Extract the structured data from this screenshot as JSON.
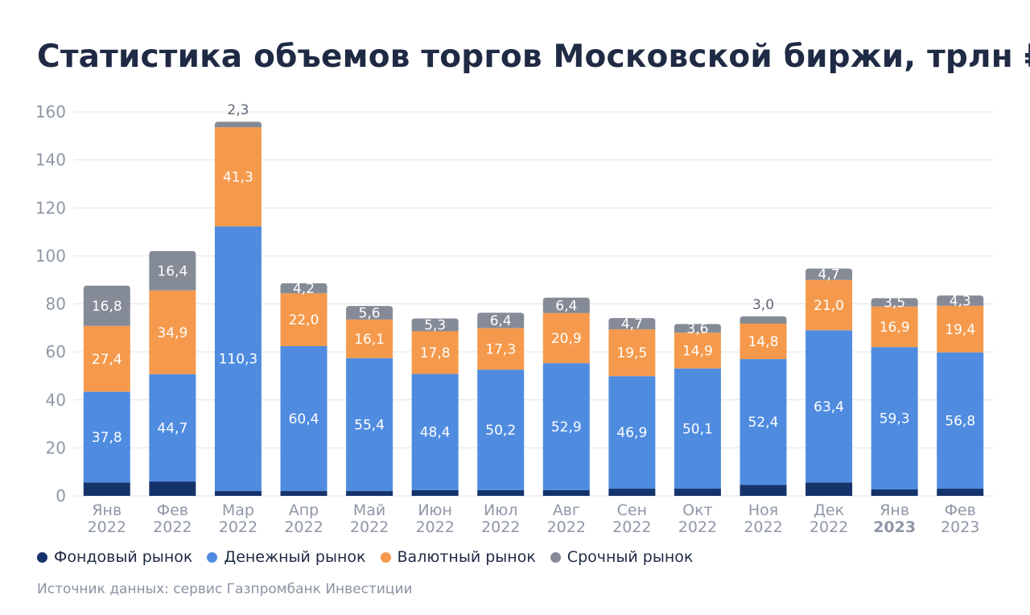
{
  "chart_data": {
    "type": "bar",
    "stacked": true,
    "title": "Статистика объемов торгов Московской биржи, трлн ₽",
    "categories": [
      {
        "month": "Янв",
        "year": "2022",
        "year_bold": false
      },
      {
        "month": "Фев",
        "year": "2022",
        "year_bold": false
      },
      {
        "month": "Мар",
        "year": "2022",
        "year_bold": false
      },
      {
        "month": "Апр",
        "year": "2022",
        "year_bold": false
      },
      {
        "month": "Май",
        "year": "2022",
        "year_bold": false
      },
      {
        "month": "Июн",
        "year": "2022",
        "year_bold": false
      },
      {
        "month": "Июл",
        "year": "2022",
        "year_bold": false
      },
      {
        "month": "Авг",
        "year": "2022",
        "year_bold": false
      },
      {
        "month": "Сен",
        "year": "2022",
        "year_bold": false
      },
      {
        "month": "Окт",
        "year": "2022",
        "year_bold": false
      },
      {
        "month": "Ноя",
        "year": "2022",
        "year_bold": false
      },
      {
        "month": "Дек",
        "year": "2022",
        "year_bold": false
      },
      {
        "month": "Янв",
        "year": "2023",
        "year_bold": true
      },
      {
        "month": "Фев",
        "year": "2023",
        "year_bold": false
      }
    ],
    "series": [
      {
        "name": "Фондовый рынок",
        "color": "#15336b",
        "values": [
          5.6,
          6.0,
          2.0,
          2.0,
          2.0,
          2.4,
          2.4,
          2.4,
          3.0,
          3.0,
          4.6,
          5.6,
          2.7,
          3.0
        ],
        "labels": [
          "",
          "",
          "",
          "",
          "",
          "",
          "",
          "",
          "",
          "",
          "",
          "",
          "",
          ""
        ]
      },
      {
        "name": "Денежный рынок",
        "color": "#4f8ce0",
        "values": [
          37.8,
          44.7,
          110.3,
          60.4,
          55.4,
          48.4,
          50.2,
          52.9,
          46.9,
          50.1,
          52.4,
          63.4,
          59.3,
          56.8
        ],
        "labels": [
          "37,8",
          "44,7",
          "110,3",
          "60,4",
          "55,4",
          "48,4",
          "50,2",
          "52,9",
          "46,9",
          "50,1",
          "52,4",
          "63,4",
          "59,3",
          "56,8"
        ]
      },
      {
        "name": "Валютный рынок",
        "color": "#f59a4c",
        "values": [
          27.4,
          34.9,
          41.3,
          22.0,
          16.1,
          17.8,
          17.3,
          20.9,
          19.5,
          14.9,
          14.8,
          21.0,
          16.9,
          19.4
        ],
        "labels": [
          "27,4",
          "34,9",
          "41,3",
          "22,0",
          "16,1",
          "17,8",
          "17,3",
          "20,9",
          "19,5",
          "14,9",
          "14,8",
          "21,0",
          "16,9",
          "19,4"
        ]
      },
      {
        "name": "Срочный рынок",
        "color": "#858b96",
        "values": [
          16.8,
          16.4,
          2.3,
          4.2,
          5.6,
          5.3,
          6.4,
          6.4,
          4.7,
          3.6,
          3.0,
          4.7,
          3.5,
          4.3
        ],
        "labels": [
          "16,8",
          "16,4",
          "2,3",
          "4,2",
          "5,6",
          "5,3",
          "6,4",
          "6,4",
          "4,7",
          "3,6",
          "3,0",
          "4,7",
          "3,5",
          "4,3"
        ],
        "label_above": [
          false,
          false,
          true,
          false,
          false,
          false,
          false,
          false,
          false,
          false,
          true,
          false,
          false,
          false
        ]
      }
    ],
    "ylim": [
      0,
      160
    ],
    "yticks": [
      "0",
      "20",
      "40",
      "60",
      "80",
      "100",
      "120",
      "140",
      "160"
    ],
    "grid": true,
    "legend_position": "bottom-left"
  },
  "source": "Источник данных: сервис Газпромбанк Инвестиции",
  "colors": {
    "title": "#1f2a44",
    "axis_text": "#8f97a6",
    "grid": "#dfe3ea",
    "label_on_bar": "#ffffff",
    "label_above": "#5f6673"
  }
}
